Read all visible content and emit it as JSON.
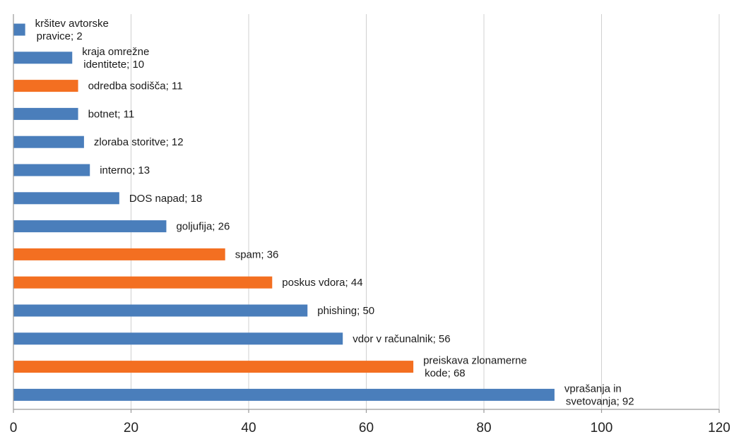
{
  "chart_data": {
    "type": "bar",
    "orientation": "horizontal",
    "title": "",
    "xlabel": "",
    "ylabel": "",
    "xlim": [
      0,
      120
    ],
    "x_ticks": [
      0,
      20,
      40,
      60,
      80,
      100,
      120
    ],
    "grid": "vertical",
    "legend": "none",
    "data_label_separator": "; ",
    "colors": {
      "blue": "#4a7ebb",
      "orange": "#f36f21"
    },
    "bars": [
      {
        "label": [
          "kršitev avtorske",
          "pravice"
        ],
        "value": 2,
        "color": "blue"
      },
      {
        "label": [
          "kraja omrežne",
          "identitete"
        ],
        "value": 10,
        "color": "blue"
      },
      {
        "label": [
          "odredba sodišča"
        ],
        "value": 11,
        "color": "orange"
      },
      {
        "label": [
          "botnet"
        ],
        "value": 11,
        "color": "blue"
      },
      {
        "label": [
          "zloraba storitve"
        ],
        "value": 12,
        "color": "blue"
      },
      {
        "label": [
          "interno"
        ],
        "value": 13,
        "color": "blue"
      },
      {
        "label": [
          "DOS napad"
        ],
        "value": 18,
        "color": "blue"
      },
      {
        "label": [
          "goljufija"
        ],
        "value": 26,
        "color": "blue"
      },
      {
        "label": [
          "spam"
        ],
        "value": 36,
        "color": "orange"
      },
      {
        "label": [
          "poskus vdora"
        ],
        "value": 44,
        "color": "orange"
      },
      {
        "label": [
          "phishing"
        ],
        "value": 50,
        "color": "blue"
      },
      {
        "label": [
          "vdor v računalnik"
        ],
        "value": 56,
        "color": "blue"
      },
      {
        "label": [
          "preiskava zlonamerne",
          "kode"
        ],
        "value": 68,
        "color": "orange"
      },
      {
        "label": [
          "vprašanja in",
          "svetovanja"
        ],
        "value": 92,
        "color": "blue"
      }
    ]
  }
}
